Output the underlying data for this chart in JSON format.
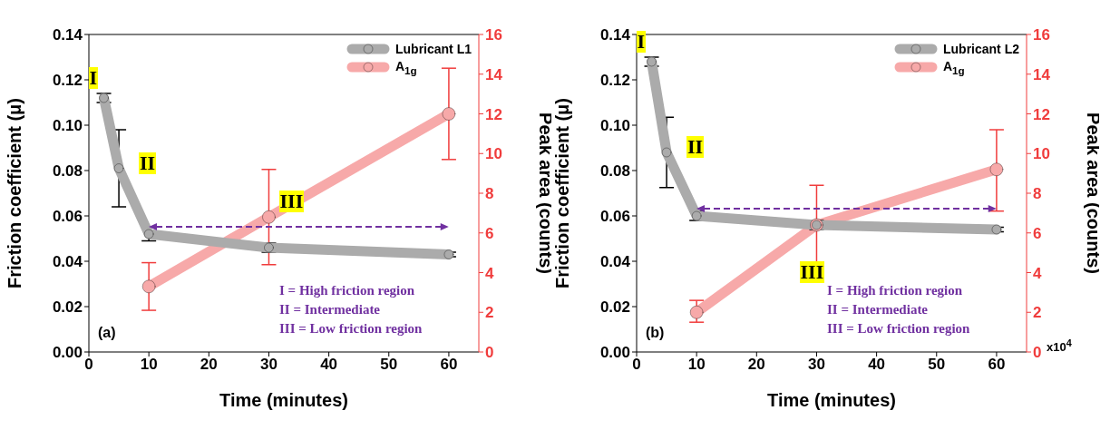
{
  "chart_data": [
    {
      "type": "line",
      "xlabel": "Time (minutes)",
      "ylabel": "Friction coefficient (μ)",
      "y2label": "Peak area (counts)",
      "xlim": [
        0,
        65
      ],
      "xticks": [
        0,
        10,
        20,
        30,
        40,
        50,
        60
      ],
      "ylim": [
        0,
        0.14
      ],
      "yticks": [
        {
          "value": 0,
          "label": "0.00"
        },
        {
          "value": 0.02,
          "label": "0.02"
        },
        {
          "value": 0.04,
          "label": "0.04"
        },
        {
          "value": 0.06,
          "label": "0.06"
        },
        {
          "value": 0.08,
          "label": "0.08"
        },
        {
          "value": 0.1,
          "label": "0.10"
        },
        {
          "value": 0.12,
          "label": "0.12"
        },
        {
          "value": 0.14,
          "label": "0.14"
        }
      ],
      "y2lim": [
        0,
        16
      ],
      "y2ticks": [
        0,
        2,
        4,
        6,
        8,
        10,
        12,
        14,
        16
      ],
      "legend": "top right",
      "marker": "circle",
      "grid": false,
      "series": [
        {
          "name": "Lubricant L1",
          "color": "#ababab",
          "x": [
            2.5,
            5,
            10,
            30,
            60
          ],
          "values": [
            0.112,
            0.081,
            0.052,
            0.046,
            0.043
          ],
          "errors": [
            0.002,
            0.017,
            0.003,
            0.002,
            0.001
          ]
        },
        {
          "name": "A$_{1g}$",
          "color": "#f7a9a9",
          "axis": "y2",
          "x": [
            10,
            30,
            60
          ],
          "values": [
            3.3,
            6.8,
            12.0
          ],
          "errors": [
            [
              2.1,
              4.5
            ],
            [
              4.4,
              9.2
            ],
            [
              9.7,
              14.3
            ]
          ]
        }
      ],
      "annotations": [
        "I",
        "II",
        "III",
        "(a)",
        "I = High friction region",
        "II = Intermediate",
        "III = Low friction region"
      ]
    },
    {
      "type": "line",
      "xlabel": "Time (minutes)",
      "ylabel": "Friction coefficient (μ)",
      "y2label": "Peak area (counts)",
      "xlim": [
        0,
        65
      ],
      "xticks": [
        0,
        10,
        20,
        30,
        40,
        50,
        60
      ],
      "ylim": [
        0,
        0.14
      ],
      "yticks": [
        {
          "value": 0,
          "label": "0.00"
        },
        {
          "value": 0.02,
          "label": "0.02"
        },
        {
          "value": 0.04,
          "label": "0.04"
        },
        {
          "value": 0.06,
          "label": "0.06"
        },
        {
          "value": 0.08,
          "label": "0.08"
        },
        {
          "value": 0.1,
          "label": "0.10"
        },
        {
          "value": 0.12,
          "label": "0.12"
        },
        {
          "value": 0.14,
          "label": "0.14"
        }
      ],
      "y2lim": [
        0,
        16
      ],
      "y2ticks": [
        0,
        2,
        4,
        6,
        8,
        10,
        12,
        14,
        16
      ],
      "legend": "top right",
      "marker": "circle",
      "grid": false,
      "series": [
        {
          "name": "Lubricant L2",
          "color": "#ababab",
          "x": [
            2.5,
            5,
            10,
            30,
            60
          ],
          "values": [
            0.128,
            0.088,
            0.06,
            0.056,
            0.054
          ],
          "errors": [
            0.002,
            0.0155,
            0.002,
            0.002,
            0.001
          ]
        },
        {
          "name": "A$_{1g}$",
          "color": "#f7a9a9",
          "axis": "y2",
          "x": [
            10,
            30,
            60
          ],
          "values": [
            2.0,
            6.4,
            9.2
          ],
          "errors": [
            [
              1.5,
              2.6
            ],
            [
              4.4,
              8.4
            ],
            [
              7.1,
              11.2
            ]
          ]
        }
      ],
      "annotations": [
        "I",
        "II",
        "III",
        "(b)",
        "I = High friction region",
        "II = Intermediate",
        "III = Low friction region",
        "x10$^{4}$"
      ]
    }
  ]
}
